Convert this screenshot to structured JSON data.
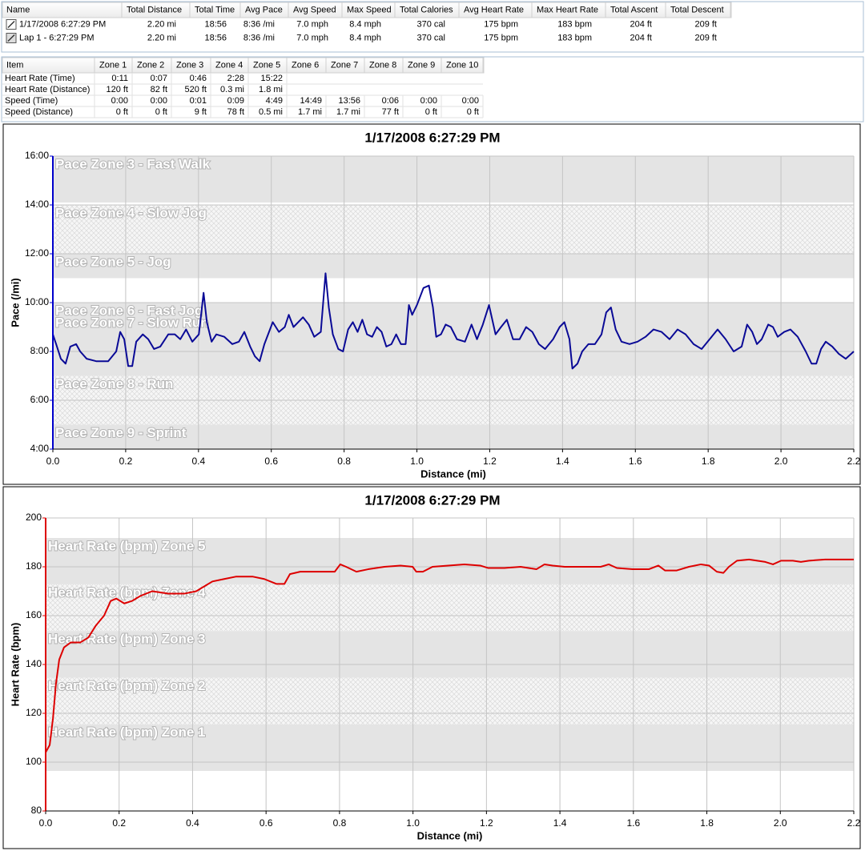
{
  "laps_table": {
    "headers": [
      "Name",
      "Total Distance",
      "Total Time",
      "Avg Pace",
      "Avg Speed",
      "Max Speed",
      "Total Calories",
      "Avg Heart Rate",
      "Max Heart Rate",
      "Total Ascent",
      "Total Descent"
    ],
    "rows": [
      [
        "1/17/2008 6:27:29 PM",
        "2.20 mi",
        "18:56",
        "8:36 /mi",
        "7.0 mph",
        "8.4 mph",
        "370 cal",
        "175 bpm",
        "183 bpm",
        "204 ft",
        "209 ft"
      ],
      [
        "Lap 1 - 6:27:29 PM",
        "2.20 mi",
        "18:56",
        "8:36 /mi",
        "7.0 mph",
        "8.4 mph",
        "370 cal",
        "175 bpm",
        "183 bpm",
        "204 ft",
        "209 ft"
      ]
    ]
  },
  "zones_table": {
    "headers": [
      "Item",
      "Zone 1",
      "Zone 2",
      "Zone 3",
      "Zone 4",
      "Zone 5",
      "Zone 6",
      "Zone 7",
      "Zone 8",
      "Zone 9",
      "Zone 10"
    ],
    "rows": [
      [
        "Heart Rate (Time)",
        "0:11",
        "0:07",
        "0:46",
        "2:28",
        "15:22"
      ],
      [
        "Heart Rate (Distance)",
        "120 ft",
        "82 ft",
        "520 ft",
        "0.3 mi",
        "1.8 mi"
      ],
      [
        "Speed (Time)",
        "0:00",
        "0:00",
        "0:01",
        "0:09",
        "4:49",
        "14:49",
        "13:56",
        "0:06",
        "0:00",
        "0:00"
      ],
      [
        "Speed (Distance)",
        "0 ft",
        "0 ft",
        "9 ft",
        "78 ft",
        "0.5 mi",
        "1.7 mi",
        "1.7 mi",
        "77 ft",
        "0 ft",
        "0 ft"
      ]
    ]
  },
  "chart_data": [
    {
      "type": "line",
      "title": "1/17/2008 6:27:29 PM",
      "x_label": "Distance (mi)",
      "y_label": "Pace (/mi)",
      "axis_color": "#0000cc",
      "grid": true,
      "xlim": [
        0,
        2.2
      ],
      "xticks": [
        {
          "value": 0,
          "label": "0.0"
        },
        0.2,
        0.4,
        0.6,
        0.8,
        {
          "value": 1,
          "label": "1.0"
        },
        1.2,
        1.4,
        1.6,
        1.8,
        {
          "value": 2,
          "label": "2.0"
        },
        2.2
      ],
      "ylim": [
        4,
        16
      ],
      "yticks": [
        {
          "value": 4,
          "label": "4:00"
        },
        {
          "value": 6,
          "label": "6:00"
        },
        {
          "value": 8,
          "label": "8:00"
        },
        {
          "value": 10,
          "label": "10:00"
        },
        {
          "value": 12,
          "label": "12:00"
        },
        {
          "value": 14,
          "label": "14:00"
        },
        {
          "value": 16,
          "label": "16:00"
        }
      ],
      "zones": [
        {
          "name": "Pace Zone 3 - Fast Walk",
          "from": 14.1,
          "to": 16,
          "fill": "solid"
        },
        {
          "name": "Pace Zone 4 - Slow Jog",
          "from": 12,
          "to": 14,
          "fill": "hatch"
        },
        {
          "name": "Pace Zone 5 - Jog",
          "from": 11,
          "to": 12,
          "fill": "solid"
        },
        {
          "name": "Pace Zone 6 - Fast Jog",
          "from": 8,
          "to": 10,
          "fill": "solid"
        },
        {
          "name": "Pace Zone 7 - Slow Run",
          "from": 7,
          "to": 9.5,
          "fill": "solid"
        },
        {
          "name": "Pace Zone 8 - Run",
          "from": 5,
          "to": 7,
          "fill": "hatch"
        },
        {
          "name": "Pace Zone 9 - Sprint",
          "from": 4,
          "to": 5,
          "fill": "solid"
        }
      ],
      "x": [
        0,
        0.009,
        0.022,
        0.035,
        0.048,
        0.064,
        0.075,
        0.093,
        0.119,
        0.152,
        0.174,
        0.185,
        0.196,
        0.207,
        0.218,
        0.229,
        0.247,
        0.262,
        0.278,
        0.295,
        0.317,
        0.335,
        0.35,
        0.366,
        0.383,
        0.401,
        0.414,
        0.423,
        0.436,
        0.449,
        0.471,
        0.493,
        0.511,
        0.526,
        0.542,
        0.555,
        0.568,
        0.581,
        0.604,
        0.621,
        0.637,
        0.648,
        0.661,
        0.674,
        0.687,
        0.703,
        0.718,
        0.736,
        0.749,
        0.758,
        0.769,
        0.784,
        0.797,
        0.811,
        0.824,
        0.837,
        0.85,
        0.863,
        0.877,
        0.89,
        0.903,
        0.916,
        0.93,
        0.943,
        0.956,
        0.969,
        0.978,
        0.987,
        1,
        1.018,
        1.033,
        1.044,
        1.053,
        1.066,
        1.079,
        1.093,
        1.11,
        1.132,
        1.15,
        1.165,
        1.181,
        1.198,
        1.216,
        1.231,
        1.247,
        1.264,
        1.282,
        1.3,
        1.317,
        1.335,
        1.352,
        1.374,
        1.392,
        1.405,
        1.419,
        1.427,
        1.441,
        1.454,
        1.471,
        1.489,
        1.507,
        1.52,
        1.533,
        1.546,
        1.562,
        1.584,
        1.606,
        1.628,
        1.65,
        1.672,
        1.694,
        1.716,
        1.738,
        1.76,
        1.782,
        1.804,
        1.826,
        1.848,
        1.87,
        1.892,
        1.907,
        1.921,
        1.934,
        1.947,
        1.965,
        1.978,
        1.991,
        2.009,
        2.026,
        2.046,
        2.068,
        2.084,
        2.097,
        2.11,
        2.123,
        2.141,
        2.159,
        2.178,
        2.2
      ],
      "series": [
        {
          "color": "#0a0a96",
          "values": [
            8.7,
            8.3,
            7.7,
            7.5,
            8.2,
            8.3,
            8.0,
            7.7,
            7.6,
            7.6,
            8.0,
            8.8,
            8.5,
            7.4,
            7.4,
            8.4,
            8.7,
            8.5,
            8.1,
            8.2,
            8.7,
            8.7,
            8.5,
            8.9,
            8.4,
            8.7,
            10.4,
            9.2,
            8.4,
            8.7,
            8.6,
            8.3,
            8.4,
            8.8,
            8.2,
            7.8,
            7.6,
            8.3,
            9.2,
            8.8,
            9.0,
            9.5,
            9.0,
            9.2,
            9.4,
            9.1,
            8.6,
            8.8,
            11.2,
            9.8,
            8.7,
            8.1,
            8.0,
            8.9,
            9.2,
            8.8,
            9.3,
            8.7,
            8.6,
            9.0,
            8.8,
            8.2,
            8.3,
            8.7,
            8.3,
            8.3,
            9.9,
            9.5,
            9.9,
            10.6,
            10.7,
            9.8,
            8.6,
            8.7,
            9.1,
            9.0,
            8.5,
            8.4,
            9.1,
            8.5,
            9.1,
            9.9,
            8.7,
            9.0,
            9.3,
            8.5,
            8.5,
            9.0,
            8.8,
            8.3,
            8.1,
            8.5,
            9.0,
            9.2,
            8.5,
            7.3,
            7.5,
            8.0,
            8.3,
            8.3,
            8.7,
            9.6,
            9.8,
            8.9,
            8.4,
            8.3,
            8.4,
            8.6,
            8.9,
            8.8,
            8.5,
            8.9,
            8.7,
            8.3,
            8.1,
            8.5,
            8.9,
            8.5,
            8.0,
            8.2,
            9.1,
            8.8,
            8.3,
            8.5,
            9.1,
            9.0,
            8.6,
            8.8,
            8.9,
            8.6,
            8.0,
            7.5,
            7.5,
            8.1,
            8.4,
            8.2,
            7.9,
            7.7,
            8.0
          ]
        }
      ]
    },
    {
      "type": "line",
      "title": "1/17/2008 6:27:29 PM",
      "x_label": "Distance (mi)",
      "y_label": "Heart Rate (bpm)",
      "axis_color": "#dd0000",
      "grid": true,
      "xlim": [
        0,
        2.2
      ],
      "xticks": [
        {
          "value": 0,
          "label": "0.0"
        },
        0.2,
        0.4,
        0.6,
        0.8,
        {
          "value": 1,
          "label": "1.0"
        },
        1.2,
        1.4,
        1.6,
        1.8,
        {
          "value": 2,
          "label": "2.0"
        },
        2.2
      ],
      "ylim": [
        80,
        200
      ],
      "yticks": [
        80,
        100,
        120,
        140,
        160,
        180,
        200
      ],
      "zones": [
        {
          "name": "Heart Rate (bpm) Zone 5",
          "from": 172.8,
          "to": 191.8,
          "fill": "solid"
        },
        {
          "name": "Heart Rate (bpm) Zone 4",
          "from": 153.7,
          "to": 172.8,
          "fill": "hatch"
        },
        {
          "name": "Heart Rate (bpm) Zone 3",
          "from": 134.6,
          "to": 153.7,
          "fill": "solid"
        },
        {
          "name": "Heart Rate (bpm) Zone 2",
          "from": 115.5,
          "to": 134.6,
          "fill": "hatch"
        },
        {
          "name": "Heart Rate (bpm) Zone 1",
          "from": 96.4,
          "to": 115.5,
          "fill": "solid"
        }
      ],
      "x": [
        0,
        0.011,
        0.02,
        0.028,
        0.037,
        0.05,
        0.068,
        0.094,
        0.116,
        0.137,
        0.159,
        0.177,
        0.192,
        0.214,
        0.235,
        0.257,
        0.29,
        0.334,
        0.377,
        0.41,
        0.432,
        0.454,
        0.486,
        0.519,
        0.563,
        0.595,
        0.628,
        0.65,
        0.665,
        0.693,
        0.726,
        0.759,
        0.787,
        0.802,
        0.818,
        0.846,
        0.878,
        0.922,
        0.966,
        0.999,
        1.009,
        1.027,
        1.053,
        1.096,
        1.14,
        1.183,
        1.205,
        1.249,
        1.293,
        1.336,
        1.358,
        1.38,
        1.413,
        1.468,
        1.511,
        1.533,
        1.555,
        1.598,
        1.642,
        1.668,
        1.686,
        1.718,
        1.751,
        1.784,
        1.806,
        1.827,
        1.845,
        1.86,
        1.882,
        1.915,
        1.959,
        1.98,
        2.002,
        2.034,
        2.056,
        2.078,
        2.122,
        2.2
      ],
      "series": [
        {
          "color": "#dd0000",
          "values": [
            104,
            107,
            118,
            132,
            142,
            147,
            149,
            149,
            151,
            156,
            160,
            166,
            167,
            165,
            166,
            168,
            170,
            169,
            169,
            170,
            172,
            174,
            175,
            176,
            176,
            175,
            173,
            173,
            177,
            178,
            178,
            178,
            178,
            181,
            180,
            178,
            179,
            180,
            180.5,
            180,
            178,
            178,
            180,
            180.5,
            181,
            180.5,
            179.5,
            179.5,
            180,
            179,
            181,
            180.5,
            180,
            180,
            180,
            181,
            179.5,
            179,
            179,
            180.5,
            178.5,
            178.5,
            180,
            181,
            180.5,
            178,
            177.5,
            180,
            182.5,
            183,
            182,
            181,
            182.5,
            182.5,
            182,
            182.5,
            183,
            183
          ]
        }
      ]
    }
  ]
}
